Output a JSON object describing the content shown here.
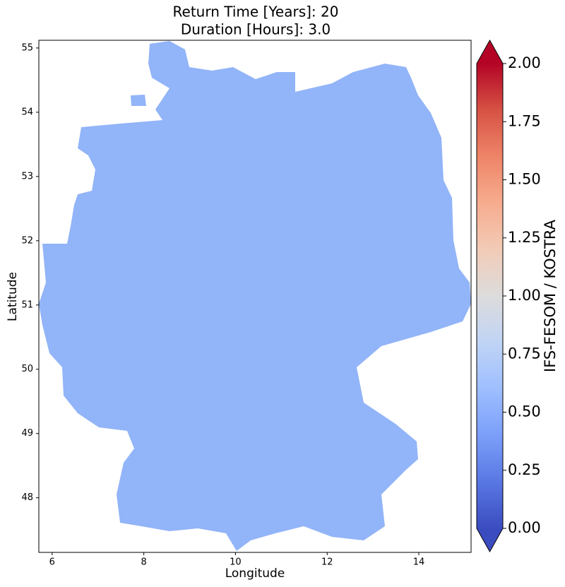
{
  "chart_data": {
    "type": "contour-map",
    "title": "Return Time [Years]: 20",
    "subtitle": "Duration [Hours]: 3.0",
    "x_label": "Longitude",
    "y_label": "Latitude",
    "xlim": [
      5.71,
      15.14
    ],
    "xticks": [
      6,
      8,
      10,
      12,
      14
    ],
    "ylim": [
      47.15,
      55.12
    ],
    "yticks": [
      48,
      49,
      50,
      51,
      52,
      53,
      54,
      55
    ],
    "map_fill": "#92b4f8",
    "colorbar": {
      "label": "IFS-FESOM / KOSTRA",
      "lim": [
        0,
        2
      ],
      "ticks": [
        {
          "value": 0,
          "label": "0.00"
        },
        {
          "value": 0.25,
          "label": "0.25"
        },
        {
          "value": 0.5,
          "label": "0.50"
        },
        {
          "value": 0.75,
          "label": "0.75"
        },
        {
          "value": 1,
          "label": "1.00"
        },
        {
          "value": 1.25,
          "label": "1.25"
        },
        {
          "value": 1.5,
          "label": "1.50"
        },
        {
          "value": 1.75,
          "label": "1.75"
        },
        {
          "value": 2,
          "label": "2.00"
        }
      ],
      "colors": [
        "#3b4cc0",
        "#5977e3",
        "#7b9ff9",
        "#9ebeff",
        "#c0d4f5",
        "#dddcdc",
        "#f2cbb7",
        "#f7ac8e",
        "#ee8468",
        "#d65244",
        "#b40426"
      ]
    }
  }
}
